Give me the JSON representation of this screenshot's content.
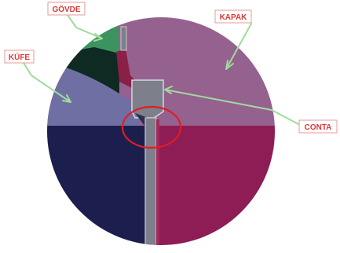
{
  "labels": {
    "govde": "GÖVDE",
    "kapak": "KAPAK",
    "kufe": "KÜFE",
    "conta": "CONTA"
  },
  "colors": {
    "background": "#ffffff",
    "kapak_region": "#95618f",
    "lower_right": "#8e1c55",
    "lower_left": "#1c1f4d",
    "kufe_region": "#6f6fa3",
    "dark_green": "#0e2a22",
    "govde_green": "#3d9360",
    "maroon_strip": "#8a1f48",
    "conta_gray": "#7d7f8a",
    "leader_green": "#9fdc9b",
    "label_border": "#e79a9a",
    "label_text": "#d93a3a",
    "highlight_circle": "#e01d25"
  }
}
